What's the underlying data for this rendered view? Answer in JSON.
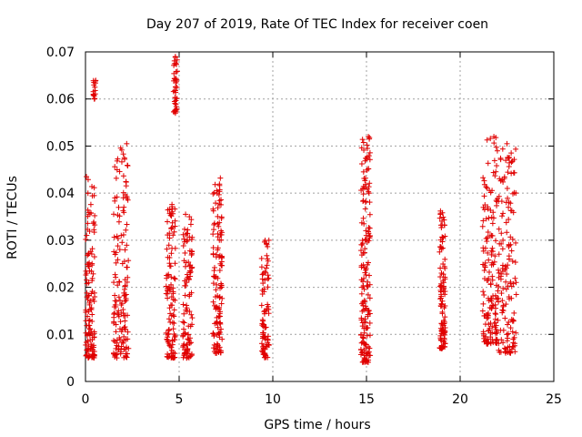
{
  "chart_data": {
    "type": "scatter",
    "title": "Day 207 of 2019, Rate Of TEC Index for receiver coen",
    "xlabel": "GPS time / hours",
    "ylabel": "ROTI / TECUs",
    "xlim": [
      0,
      25
    ],
    "ylim": [
      0,
      0.07
    ],
    "x_ticks": [
      0,
      5,
      10,
      15,
      20,
      25
    ],
    "y_ticks": [
      0,
      0.01,
      0.02,
      0.03,
      0.04,
      0.05,
      0.06,
      0.07
    ],
    "x_tick_labels": [
      "0",
      "5",
      "10",
      "15",
      "20",
      "25"
    ],
    "y_tick_labels": [
      "0",
      "0.01",
      "0.02",
      "0.03",
      "0.04",
      "0.05",
      "0.06",
      "0.07"
    ],
    "grid": true,
    "marker": "+",
    "color": "#e00000",
    "series": [
      {
        "name": "ROTI",
        "clusters": [
          {
            "x": [
              0.0,
              0.5
            ],
            "y": [
              0.005,
              0.043
            ]
          },
          {
            "x": [
              0.4,
              0.55
            ],
            "y": [
              0.06,
              0.064
            ]
          },
          {
            "x": [
              1.5,
              2.3
            ],
            "y": [
              0.005,
              0.05
            ]
          },
          {
            "x": [
              4.3,
              4.8
            ],
            "y": [
              0.005,
              0.038
            ]
          },
          {
            "x": [
              4.7,
              4.9
            ],
            "y": [
              0.057,
              0.069
            ]
          },
          {
            "x": [
              5.2,
              5.7
            ],
            "y": [
              0.005,
              0.036
            ]
          },
          {
            "x": [
              6.8,
              7.3
            ],
            "y": [
              0.006,
              0.043
            ]
          },
          {
            "x": [
              9.4,
              9.8
            ],
            "y": [
              0.005,
              0.03
            ]
          },
          {
            "x": [
              14.7,
              15.2
            ],
            "y": [
              0.004,
              0.052
            ]
          },
          {
            "x": [
              18.9,
              19.2
            ],
            "y": [
              0.007,
              0.036
            ]
          },
          {
            "x": [
              21.2,
              22.0
            ],
            "y": [
              0.008,
              0.052
            ]
          },
          {
            "x": [
              22.0,
              23.0
            ],
            "y": [
              0.006,
              0.05
            ]
          }
        ],
        "points": [
          {
            "x": 0.45,
            "y": 0.0635
          },
          {
            "x": 0.5,
            "y": 0.0625
          },
          {
            "x": 0.48,
            "y": 0.06
          },
          {
            "x": 4.8,
            "y": 0.069
          },
          {
            "x": 4.75,
            "y": 0.0675
          },
          {
            "x": 4.8,
            "y": 0.057
          },
          {
            "x": 15.1,
            "y": 0.052
          },
          {
            "x": 15.15,
            "y": 0.0515
          },
          {
            "x": 15.05,
            "y": 0.0495
          },
          {
            "x": 21.8,
            "y": 0.052
          },
          {
            "x": 22.5,
            "y": 0.0505
          },
          {
            "x": 2.2,
            "y": 0.0505
          },
          {
            "x": 0.05,
            "y": 0.0435
          },
          {
            "x": 7.2,
            "y": 0.0432
          },
          {
            "x": 22.8,
            "y": 0.0468
          },
          {
            "x": 18.95,
            "y": 0.0362
          },
          {
            "x": 18.95,
            "y": 0.0355
          },
          {
            "x": 19.0,
            "y": 0.0075
          },
          {
            "x": 19.0,
            "y": 0.007
          },
          {
            "x": 19.05,
            "y": 0.0073
          },
          {
            "x": 18.9,
            "y": 0.0275
          },
          {
            "x": 19.0,
            "y": 0.02
          },
          {
            "x": 19.05,
            "y": 0.012
          },
          {
            "x": 19.0,
            "y": 0.0165
          }
        ]
      }
    ]
  }
}
